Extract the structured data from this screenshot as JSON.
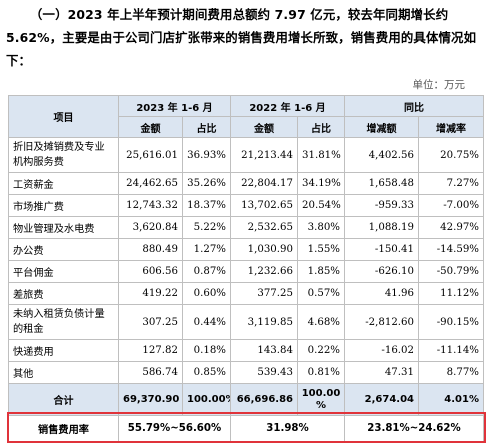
{
  "intro_text": "（一）2023 年上半年预计期间费用总额约 7.97 亿元，较去年同期增长约 5.62%，主要是由于公司门店扩张带来的销售费用增长所致，销售费用的具体情况如下：",
  "unit_label": "单位：万元",
  "table": {
    "header": {
      "item": "项目",
      "period_2023": "2023 年 1-6 月",
      "period_2022": "2022 年 1-6 月",
      "yoy": "同比",
      "amount": "金额",
      "share": "占比",
      "change_amount": "增减额",
      "change_rate": "增减率"
    },
    "rows": [
      {
        "name": "折旧及摊销费及专业机构服务费",
        "a2023": "25,616.01",
        "s2023": "36.93%",
        "a2022": "21,213.44",
        "s2022": "31.81%",
        "chg": "4,402.56",
        "rate": "20.75%"
      },
      {
        "name": "工资薪金",
        "a2023": "24,462.65",
        "s2023": "35.26%",
        "a2022": "22,804.17",
        "s2022": "34.19%",
        "chg": "1,658.48",
        "rate": "7.27%"
      },
      {
        "name": "市场推广费",
        "a2023": "12,743.32",
        "s2023": "18.37%",
        "a2022": "13,702.65",
        "s2022": "20.54%",
        "chg": "-959.33",
        "rate": "-7.00%"
      },
      {
        "name": "物业管理及水电费",
        "a2023": "3,620.84",
        "s2023": "5.22%",
        "a2022": "2,532.65",
        "s2022": "3.80%",
        "chg": "1,088.19",
        "rate": "42.97%"
      },
      {
        "name": "办公费",
        "a2023": "880.49",
        "s2023": "1.27%",
        "a2022": "1,030.90",
        "s2022": "1.55%",
        "chg": "-150.41",
        "rate": "-14.59%"
      },
      {
        "name": "平台佣金",
        "a2023": "606.56",
        "s2023": "0.87%",
        "a2022": "1,232.66",
        "s2022": "1.85%",
        "chg": "-626.10",
        "rate": "-50.79%"
      },
      {
        "name": "差旅费",
        "a2023": "419.22",
        "s2023": "0.60%",
        "a2022": "377.25",
        "s2022": "0.57%",
        "chg": "41.96",
        "rate": "11.12%"
      },
      {
        "name": "未纳入租赁负债计量的租金",
        "a2023": "307.25",
        "s2023": "0.44%",
        "a2022": "3,119.85",
        "s2022": "4.68%",
        "chg": "-2,812.60",
        "rate": "-90.15%"
      },
      {
        "name": "快递费用",
        "a2023": "127.82",
        "s2023": "0.18%",
        "a2022": "143.84",
        "s2022": "0.22%",
        "chg": "-16.02",
        "rate": "-11.14%"
      },
      {
        "name": "其他",
        "a2023": "586.74",
        "s2023": "0.85%",
        "a2022": "539.43",
        "s2022": "0.81%",
        "chg": "47.31",
        "rate": "8.77%"
      }
    ],
    "total": {
      "name": "合计",
      "a2023": "69,370.90",
      "s2023": "100.00%",
      "a2022": "66,696.86",
      "s2022": "100.00 %",
      "chg": "2,674.04",
      "rate": "4.01%"
    },
    "rate_row": {
      "name": "销售费用率",
      "v2023": "55.79%~56.60%",
      "v2022": "31.98%",
      "vyoy": "23.81%~24.62%"
    }
  }
}
